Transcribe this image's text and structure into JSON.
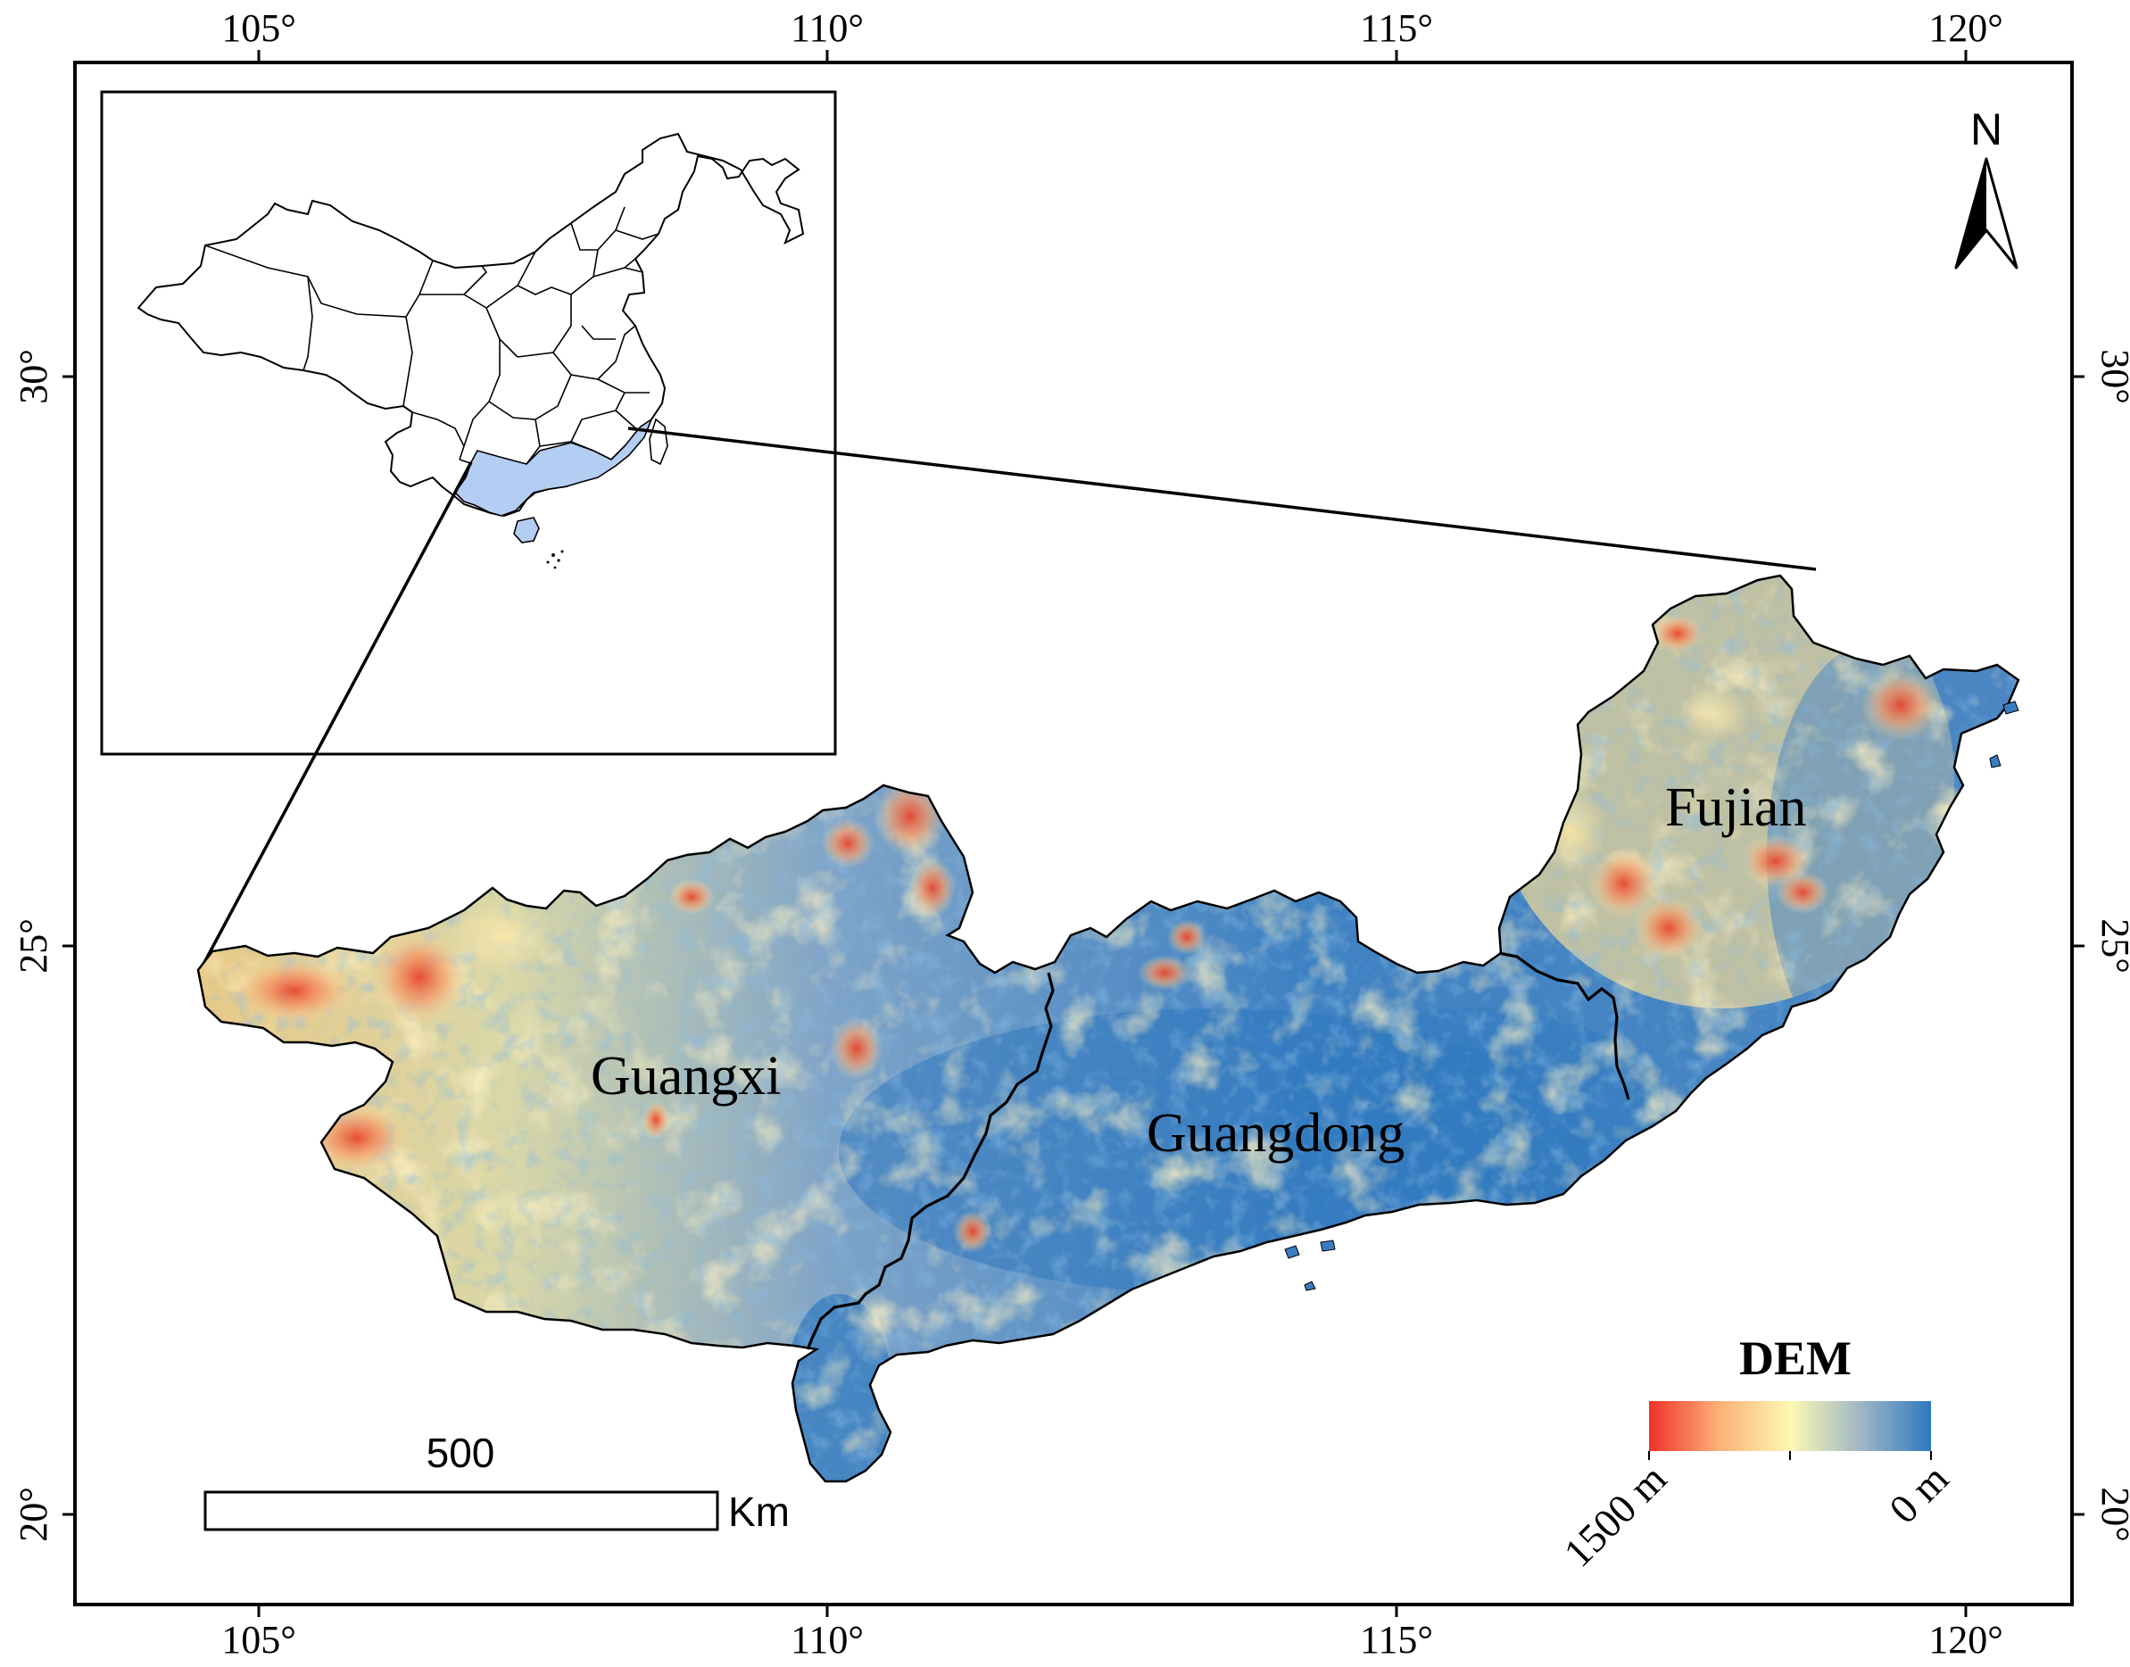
{
  "lon_ticks": [
    "105°",
    "110°",
    "115°",
    "120°"
  ],
  "lat_ticks": [
    "30°",
    "25°",
    "20°"
  ],
  "north_arrow": {
    "label": "N",
    "icon": "north-arrow-icon"
  },
  "provinces": {
    "guangxi": "Guangxi",
    "guangdong": "Guangdong",
    "fujian": "Fujian"
  },
  "legend": {
    "title": "DEM",
    "high_label": "1500 m",
    "low_label": "0 m",
    "colors": [
      "#f2312a",
      "#fbb277",
      "#fdf8b4",
      "#9fb7c4",
      "#2f79c0"
    ]
  },
  "scale_bar": {
    "value": "500",
    "unit": "Km"
  },
  "inset": {
    "highlight_color": "#b4cdf2"
  }
}
